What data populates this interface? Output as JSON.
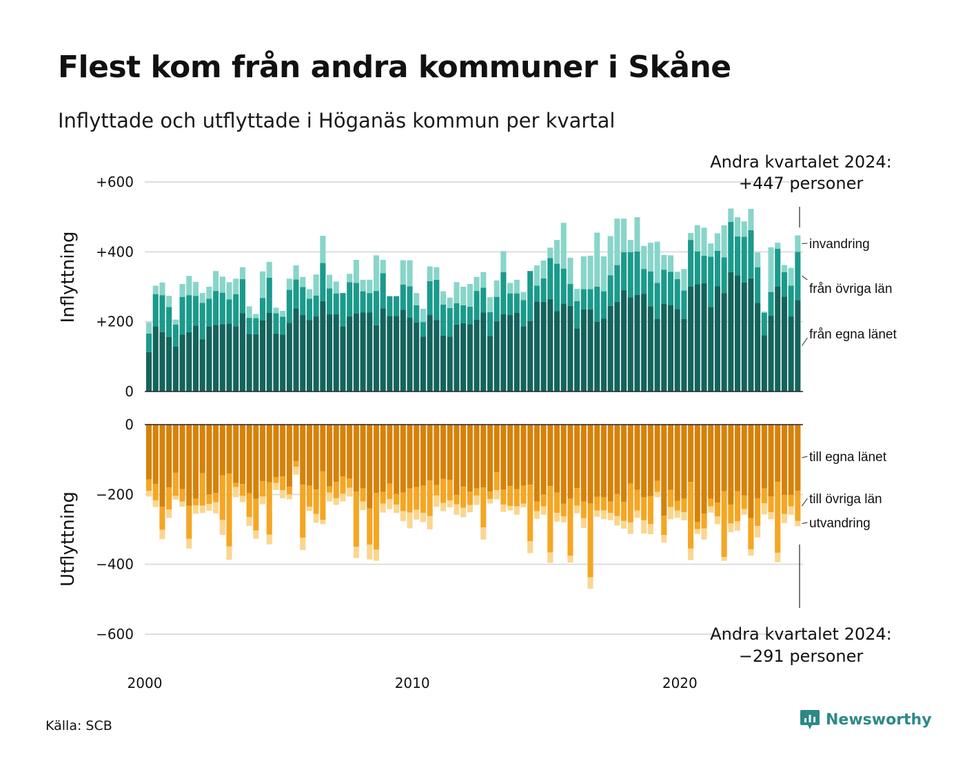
{
  "title": "Flest kom från andra kommuner i Skåne",
  "subtitle": "Inflyttade och utflyttade i Höganäs kommun per kvartal",
  "source": "Källa: SCB",
  "brand": "Newsworthy",
  "colors": {
    "in_own": "#14635c",
    "in_other": "#1b9a8c",
    "in_immig": "#88d5c9",
    "out_own": "#d6820a",
    "out_other": "#f5a623",
    "out_emig": "#fad68f",
    "grid": "#dddddd",
    "brand": "#2c8a86"
  },
  "chart_data": [
    {
      "type": "bar",
      "stacked": true,
      "panel": "Inflyttning",
      "x_start": 2000,
      "x_unit": "kvartal",
      "x_ticks": [
        "2000",
        "2010",
        "2020"
      ],
      "y_ticks": [
        "0",
        "+200",
        "+400",
        "+600"
      ],
      "ylim": [
        0,
        600
      ],
      "grid": true,
      "series": [
        {
          "name": "från egna länet",
          "values": [
            113,
            187,
            170,
            156,
            129,
            163,
            170,
            189,
            149,
            187,
            191,
            193,
            195,
            187,
            224,
            165,
            164,
            204,
            225,
            166,
            163,
            197,
            238,
            219,
            205,
            215,
            259,
            221,
            221,
            187,
            215,
            223,
            226,
            226,
            190,
            238,
            216,
            216,
            234,
            212,
            198,
            157,
            219,
            205,
            160,
            157,
            192,
            196,
            193,
            206,
            226,
            159,
            201,
            221,
            219,
            225,
            187,
            202,
            258,
            257,
            265,
            230,
            252,
            245,
            181,
            235,
            235,
            200,
            209,
            245,
            257,
            290,
            270,
            277,
            280,
            244,
            208,
            252,
            248,
            236,
            208,
            300,
            307,
            310,
            242,
            301,
            282,
            342,
            333,
            312,
            324,
            254,
            161,
            217,
            300,
            272,
            215,
            262
          ]
        },
        {
          "name": "från övriga län",
          "values": [
            53,
            92,
            106,
            86,
            63,
            108,
            106,
            85,
            105,
            79,
            97,
            90,
            69,
            92,
            98,
            46,
            46,
            64,
            101,
            58,
            51,
            94,
            83,
            80,
            61,
            60,
            109,
            74,
            60,
            95,
            98,
            88,
            61,
            56,
            98,
            101,
            57,
            57,
            72,
            89,
            49,
            42,
            97,
            115,
            89,
            82,
            61,
            51,
            50,
            82,
            71,
            68,
            70,
            121,
            62,
            56,
            75,
            143,
            45,
            67,
            117,
            136,
            100,
            63,
            78,
            58,
            58,
            100,
            78,
            88,
            105,
            109,
            129,
            124,
            71,
            100,
            103,
            97,
            95,
            86,
            81,
            134,
            94,
            79,
            144,
            102,
            102,
            144,
            111,
            131,
            138,
            102,
            64,
            68,
            109,
            70,
            88,
            138
          ]
        },
        {
          "name": "invandring",
          "values": [
            32,
            24,
            36,
            32,
            14,
            37,
            55,
            40,
            28,
            34,
            57,
            46,
            49,
            44,
            34,
            33,
            12,
            76,
            45,
            16,
            17,
            32,
            40,
            29,
            27,
            60,
            78,
            39,
            34,
            0,
            24,
            66,
            33,
            38,
            102,
            38,
            0,
            0,
            70,
            75,
            35,
            38,
            42,
            36,
            38,
            30,
            60,
            53,
            65,
            40,
            45,
            43,
            47,
            60,
            30,
            39,
            23,
            0,
            58,
            51,
            30,
            68,
            131,
            75,
            35,
            94,
            96,
            155,
            100,
            112,
            133,
            96,
            35,
            98,
            66,
            82,
            118,
            42,
            47,
            21,
            62,
            20,
            75,
            80,
            38,
            50,
            92,
            38,
            55,
            44,
            61,
            42,
            4,
            128,
            17,
            20,
            51,
            47
          ]
        }
      ]
    },
    {
      "type": "bar",
      "stacked": true,
      "panel": "Utflyttning",
      "x_start": 2000,
      "x_unit": "kvartal",
      "x_ticks": [
        "2000",
        "2010",
        "2020"
      ],
      "y_ticks": [
        "0",
        "−200",
        "−400",
        "−600"
      ],
      "ylim": [
        -600,
        0
      ],
      "grid": true,
      "series": [
        {
          "name": "till egna länet",
          "values": [
            -157,
            -170,
            -235,
            -180,
            -138,
            -185,
            -232,
            -212,
            -139,
            -200,
            -196,
            -145,
            -140,
            -167,
            -170,
            -197,
            -212,
            -162,
            -165,
            -150,
            -148,
            -178,
            -105,
            -172,
            -175,
            -186,
            -134,
            -177,
            -164,
            -148,
            -154,
            -192,
            -183,
            -240,
            -196,
            -193,
            -169,
            -199,
            -195,
            -183,
            -179,
            -175,
            -160,
            -173,
            -155,
            -158,
            -201,
            -178,
            -192,
            -183,
            -180,
            -192,
            -136,
            -186,
            -176,
            -185,
            -175,
            -172,
            -220,
            -200,
            -176,
            -195,
            -226,
            -212,
            -182,
            -220,
            -225,
            -207,
            -208,
            -220,
            -199,
            -221,
            -169,
            -187,
            -208,
            -205,
            -161,
            -261,
            -187,
            -218,
            -212,
            -164,
            -279,
            -255,
            -212,
            -223,
            -191,
            -229,
            -191,
            -203,
            -268,
            -211,
            -183,
            -206,
            -164,
            -201,
            -201,
            -190
          ]
        },
        {
          "name": "till övriga län",
          "values": [
            -33,
            -47,
            -66,
            -63,
            -66,
            -35,
            -95,
            -19,
            -93,
            -27,
            -26,
            -128,
            -209,
            -12,
            -34,
            -68,
            -91,
            -44,
            -150,
            -17,
            -40,
            -22,
            -16,
            -152,
            -60,
            -70,
            -139,
            -18,
            -47,
            -50,
            -27,
            -158,
            -37,
            -104,
            -162,
            -33,
            -44,
            -30,
            -53,
            -69,
            -65,
            -78,
            -102,
            -30,
            -69,
            -59,
            -27,
            -60,
            -38,
            -20,
            -114,
            -21,
            -52,
            -43,
            -57,
            -49,
            -51,
            -162,
            -28,
            -34,
            -190,
            -58,
            -37,
            -163,
            -50,
            -48,
            -212,
            -39,
            -38,
            -33,
            -63,
            -55,
            -111,
            -59,
            -66,
            -80,
            -32,
            -55,
            -49,
            -28,
            -39,
            -191,
            -20,
            -42,
            -22,
            -40,
            -188,
            -54,
            -86,
            -39,
            -89,
            -79,
            -42,
            -45,
            -203,
            -55,
            -33,
            -86
          ]
        },
        {
          "name": "utvandring",
          "values": [
            -16,
            -19,
            -27,
            -24,
            -11,
            -15,
            -28,
            -24,
            -21,
            -20,
            -32,
            -43,
            -38,
            -29,
            -18,
            -25,
            -24,
            -22,
            -28,
            -20,
            -23,
            -14,
            -22,
            -35,
            -12,
            -25,
            -12,
            -25,
            -19,
            -22,
            -25,
            -32,
            -25,
            -42,
            -32,
            -26,
            -29,
            -24,
            -28,
            -45,
            -28,
            -26,
            -38,
            -32,
            -24,
            -20,
            -30,
            -27,
            -21,
            -27,
            -35,
            -13,
            -26,
            -21,
            -13,
            -24,
            -11,
            -34,
            -22,
            -24,
            -30,
            -25,
            -17,
            -20,
            -22,
            -28,
            -33,
            -18,
            -25,
            -21,
            -27,
            -22,
            -33,
            -21,
            -38,
            -29,
            -15,
            -22,
            -35,
            -21,
            -23,
            -33,
            -14,
            -32,
            -18,
            -22,
            -11,
            -25,
            -27,
            -16,
            -18,
            -33,
            -32,
            -20,
            -27,
            -26,
            -24,
            -15
          ]
        }
      ]
    }
  ],
  "annotations": {
    "top_line1": "Andra kvartalet 2024:",
    "top_line2": "+447 personer",
    "bottom_line1": "Andra kvartalet 2024:",
    "bottom_line2": "−291 personer"
  }
}
